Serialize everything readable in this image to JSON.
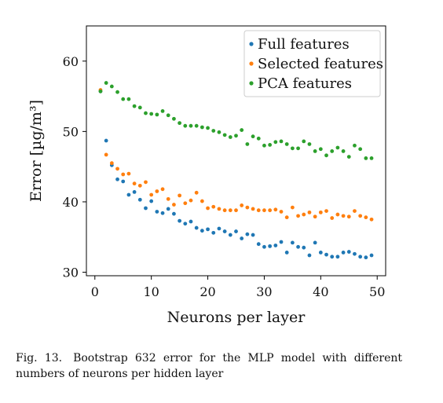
{
  "chart_data": {
    "type": "scatter",
    "title": "",
    "xlabel": "Neurons per layer",
    "ylabel": "Error [µg/m³]",
    "xlim": [
      -1.5,
      51.5
    ],
    "ylim": [
      29.5,
      65
    ],
    "xticks": [
      0,
      10,
      20,
      30,
      40,
      50
    ],
    "yticks": [
      30,
      40,
      50,
      60
    ],
    "grid": false,
    "legend_position": "top-right",
    "x": [
      1,
      2,
      3,
      4,
      5,
      6,
      7,
      8,
      9,
      10,
      11,
      12,
      13,
      14,
      15,
      16,
      17,
      18,
      19,
      20,
      21,
      22,
      23,
      24,
      25,
      26,
      27,
      28,
      29,
      30,
      31,
      32,
      33,
      34,
      35,
      36,
      37,
      38,
      39,
      40,
      41,
      42,
      43,
      44,
      45,
      46,
      47,
      48,
      49
    ],
    "series": [
      {
        "name": "Full features",
        "color": "#1f77b4",
        "values": [
          55.7,
          48.7,
          45.2,
          43.2,
          42.9,
          41.0,
          41.4,
          40.3,
          39.1,
          40.1,
          38.6,
          38.4,
          39.0,
          38.3,
          37.3,
          36.9,
          37.2,
          36.3,
          35.9,
          36.1,
          35.6,
          36.2,
          35.8,
          35.3,
          35.8,
          34.8,
          35.4,
          35.3,
          34.0,
          33.6,
          33.7,
          33.8,
          34.3,
          32.8,
          34.2,
          33.6,
          33.5,
          32.4,
          34.2,
          32.8,
          32.5,
          32.2,
          32.2,
          32.8,
          32.9,
          32.6,
          32.2,
          32.1,
          32.4
        ]
      },
      {
        "name": "Selected features",
        "color": "#ff7f0e",
        "values": [
          55.9,
          46.7,
          45.5,
          44.7,
          43.9,
          44.0,
          42.6,
          42.3,
          42.8,
          41.0,
          41.5,
          41.8,
          40.4,
          39.6,
          40.9,
          39.8,
          40.2,
          41.3,
          40.1,
          39.1,
          39.3,
          39.0,
          38.8,
          38.8,
          38.8,
          39.5,
          39.2,
          39.0,
          38.8,
          38.8,
          38.8,
          38.9,
          38.6,
          37.8,
          39.2,
          38.0,
          38.2,
          38.5,
          37.9,
          38.5,
          38.7,
          37.7,
          38.2,
          38.0,
          37.9,
          38.7,
          38.0,
          37.8,
          37.5
        ]
      },
      {
        "name": "PCA features",
        "color": "#2ca02c",
        "values": [
          55.7,
          56.9,
          56.4,
          55.6,
          54.6,
          54.6,
          53.6,
          53.4,
          52.6,
          52.5,
          52.4,
          52.9,
          52.3,
          51.8,
          51.2,
          50.8,
          50.8,
          50.8,
          50.6,
          50.5,
          50.1,
          49.9,
          49.5,
          49.2,
          49.4,
          50.2,
          48.2,
          49.3,
          49.0,
          48.0,
          48.1,
          48.5,
          48.6,
          48.2,
          47.6,
          47.6,
          48.6,
          48.2,
          47.2,
          47.5,
          46.6,
          47.2,
          47.7,
          47.2,
          46.4,
          48.0,
          47.5,
          46.2,
          46.2
        ]
      }
    ]
  },
  "caption": "Fig. 13. Bootstrap 632 error for the MLP model with different numbers of neurons per hidden layer"
}
